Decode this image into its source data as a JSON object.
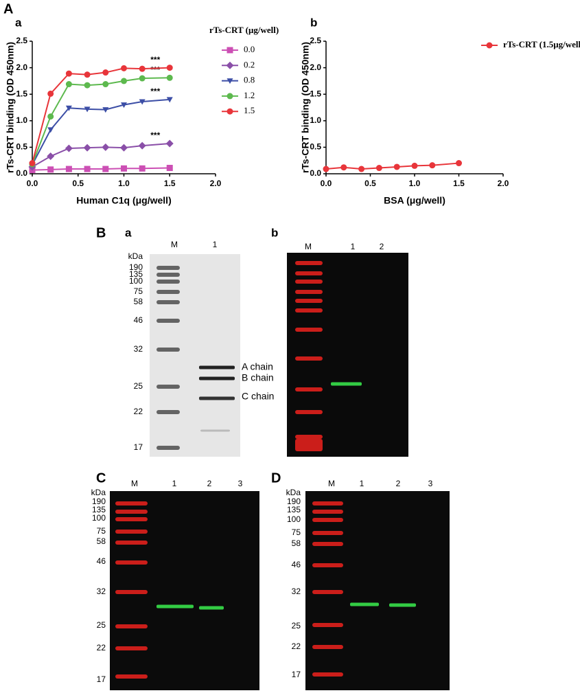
{
  "chart_data": [
    {
      "type": "line",
      "panel": "a",
      "xlabel": "Human C1q (μg/well)",
      "ylabel": "rTs-CRT binding (OD 450nm)",
      "legend_title": "rTs-CRT (μg/well)",
      "x": [
        0,
        0.2,
        0.4,
        0.6,
        0.8,
        1.0,
        1.2,
        1.5
      ],
      "series": [
        {
          "name": "0.0",
          "color": "#cc4fb4",
          "marker": "square",
          "values": [
            0.07,
            0.08,
            0.09,
            0.09,
            0.09,
            0.1,
            0.1,
            0.11
          ]
        },
        {
          "name": "0.2",
          "color": "#8a4fa8",
          "marker": "diamond",
          "values": [
            0.13,
            0.33,
            0.48,
            0.49,
            0.5,
            0.49,
            0.53,
            0.57
          ],
          "annotation": "***"
        },
        {
          "name": "0.8",
          "color": "#3c4ea6",
          "marker": "triangle-down",
          "values": [
            0.17,
            0.83,
            1.24,
            1.22,
            1.21,
            1.3,
            1.36,
            1.4
          ],
          "annotation": "***"
        },
        {
          "name": "1.2",
          "color": "#5db94e",
          "marker": "circle",
          "values": [
            0.18,
            1.08,
            1.69,
            1.67,
            1.69,
            1.75,
            1.8,
            1.81
          ],
          "annotation": "***"
        },
        {
          "name": "1.5",
          "color": "#e8353a",
          "marker": "circle",
          "values": [
            0.2,
            1.51,
            1.89,
            1.87,
            1.91,
            1.99,
            1.98,
            2.0
          ],
          "annotation": "***"
        }
      ],
      "xlim": [
        0,
        2
      ],
      "xticks": [
        {
          "value": 0,
          "label": "0.0"
        },
        {
          "value": 0.5,
          "label": "0.5"
        },
        {
          "value": 1,
          "label": "1.0"
        },
        {
          "value": 1.5,
          "label": "1.5"
        },
        {
          "value": 2,
          "label": "2.0"
        }
      ],
      "ylim": [
        0,
        2.5
      ],
      "yticks": [
        {
          "value": 0,
          "label": "0.0"
        },
        {
          "value": 0.5,
          "label": "0.5"
        },
        {
          "value": 1,
          "label": "1.0"
        },
        {
          "value": 1.5,
          "label": "1.5"
        },
        {
          "value": 2,
          "label": "2.0"
        },
        {
          "value": 2.5,
          "label": "2.5"
        }
      ],
      "grid": false
    },
    {
      "type": "line",
      "panel": "b",
      "xlabel": "BSA (μg/well)",
      "ylabel": "rTs-CRT binding (OD 450nm)",
      "x": [
        0,
        0.2,
        0.4,
        0.6,
        0.8,
        1.0,
        1.2,
        1.5
      ],
      "series": [
        {
          "name": "rTs-CRT (1.5μg/well)",
          "color": "#e8353a",
          "marker": "circle",
          "values": [
            0.09,
            0.12,
            0.09,
            0.11,
            0.13,
            0.15,
            0.16,
            0.2
          ]
        }
      ],
      "xlim": [
        0,
        2
      ],
      "xticks": [
        {
          "value": 0,
          "label": "0.0"
        },
        {
          "value": 0.5,
          "label": "0.5"
        },
        {
          "value": 1,
          "label": "1.0"
        },
        {
          "value": 1.5,
          "label": "1.5"
        },
        {
          "value": 2,
          "label": "2.0"
        }
      ],
      "ylim": [
        0,
        2.5
      ],
      "yticks": [
        {
          "value": 0,
          "label": "0.0"
        },
        {
          "value": 0.5,
          "label": "0.5"
        },
        {
          "value": 1,
          "label": "1.0"
        },
        {
          "value": 1.5,
          "label": "1.5"
        },
        {
          "value": 2,
          "label": "2.0"
        },
        {
          "value": 2.5,
          "label": "2.5"
        }
      ],
      "grid": false
    }
  ],
  "panel_letters": [
    "A",
    "B",
    "C",
    "D"
  ],
  "gels": [
    {
      "panel": "a",
      "lanes": [
        "M",
        "1"
      ],
      "markers": [
        "kDa",
        "190",
        "135",
        "100",
        "75",
        "58",
        "46",
        "32",
        "25",
        "22",
        "17"
      ],
      "chain_labels": [
        "A chain",
        "B chain",
        "C chain"
      ]
    },
    {
      "panel": "b",
      "lanes": [
        "M",
        "1",
        "2"
      ]
    },
    {
      "lanes": [
        "M",
        "1",
        "2",
        "3"
      ],
      "markers": [
        "kDa",
        "190",
        "135",
        "100",
        "75",
        "58",
        "46",
        "32",
        "25",
        "22",
        "17"
      ]
    },
    {
      "lanes": [
        "M",
        "1",
        "2",
        "3"
      ],
      "markers": [
        "kDa",
        "190",
        "135",
        "100",
        "75",
        "58",
        "46",
        "32",
        "25",
        "22",
        "17"
      ]
    }
  ]
}
